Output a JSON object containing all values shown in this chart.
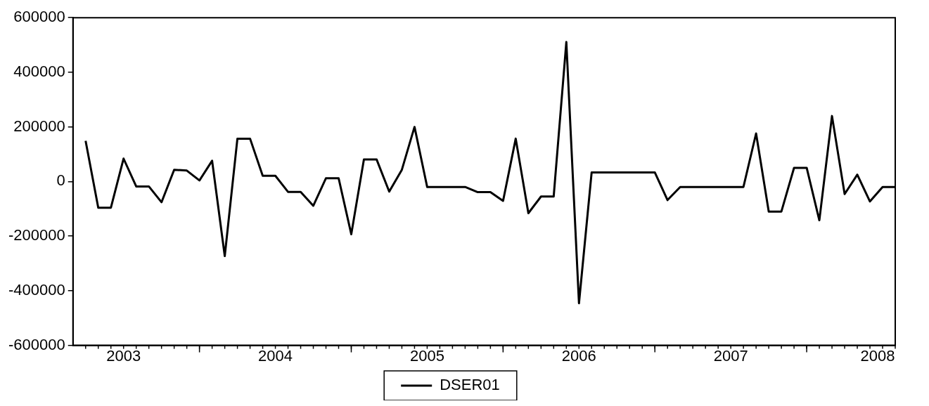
{
  "chart_data": {
    "type": "line",
    "x": [
      "2003-04",
      "2003-05",
      "2003-06",
      "2003-07",
      "2003-08",
      "2003-09",
      "2003-10",
      "2003-11",
      "2003-12",
      "2004-01",
      "2004-02",
      "2004-03",
      "2004-04",
      "2004-05",
      "2004-06",
      "2004-07",
      "2004-08",
      "2004-09",
      "2004-10",
      "2004-11",
      "2004-12",
      "2005-01",
      "2005-02",
      "2005-03",
      "2005-04",
      "2005-05",
      "2005-06",
      "2005-07",
      "2005-08",
      "2005-09",
      "2005-10",
      "2005-11",
      "2005-12",
      "2006-01",
      "2006-02",
      "2006-03",
      "2006-04",
      "2006-05",
      "2006-06",
      "2006-07",
      "2006-08",
      "2006-09",
      "2006-10",
      "2006-11",
      "2006-12",
      "2007-01",
      "2007-02",
      "2007-03",
      "2007-04",
      "2007-05",
      "2007-06",
      "2007-07",
      "2007-08",
      "2007-09",
      "2007-10",
      "2007-11",
      "2007-12",
      "2008-01",
      "2008-02",
      "2008-03",
      "2008-04",
      "2008-05",
      "2008-06",
      "2008-07",
      "2008-08"
    ],
    "series": [
      {
        "name": "DSER01",
        "color": "#000000",
        "values": [
          149000,
          -96000,
          -96000,
          84000,
          -18000,
          -18000,
          -76000,
          43000,
          40000,
          4000,
          76000,
          -273000,
          157000,
          157000,
          21000,
          21000,
          -38000,
          -38000,
          -89000,
          12000,
          12000,
          -193000,
          81000,
          81000,
          -37000,
          43000,
          200000,
          -20000,
          -20000,
          -20000,
          -20000,
          -39000,
          -39000,
          -71000,
          157000,
          -116000,
          -55000,
          -55000,
          511000,
          -446000,
          33000,
          33000,
          33000,
          33000,
          33000,
          33000,
          -68000,
          -20000,
          -20000,
          -20000,
          -20000,
          -20000,
          -20000,
          176000,
          -110000,
          -110000,
          50000,
          50000,
          -142000,
          240000,
          -46000,
          25000,
          -73000,
          -20000,
          -20000
        ]
      }
    ],
    "xlim": [
      "2003-03",
      "2008-08"
    ],
    "xticks": [
      {
        "value": "2003-07",
        "label": "2003"
      },
      {
        "value": "2004-01",
        "label": null
      },
      {
        "value": "2004-07",
        "label": "2004"
      },
      {
        "value": "2005-01",
        "label": null
      },
      {
        "value": "2005-07",
        "label": "2005"
      },
      {
        "value": "2006-01",
        "label": null
      },
      {
        "value": "2006-07",
        "label": "2006"
      },
      {
        "value": "2007-01",
        "label": null
      },
      {
        "value": "2007-07",
        "label": "2007"
      },
      {
        "value": "2008-01",
        "label": null
      },
      {
        "value": "2008-06-20",
        "label": "2008"
      }
    ],
    "ylim": [
      -600000,
      600000
    ],
    "yticks": [
      -600000,
      -400000,
      -200000,
      0,
      200000,
      400000,
      600000
    ],
    "grid": false,
    "legend": "bottom",
    "marker": "none",
    "line_style": "solid"
  }
}
